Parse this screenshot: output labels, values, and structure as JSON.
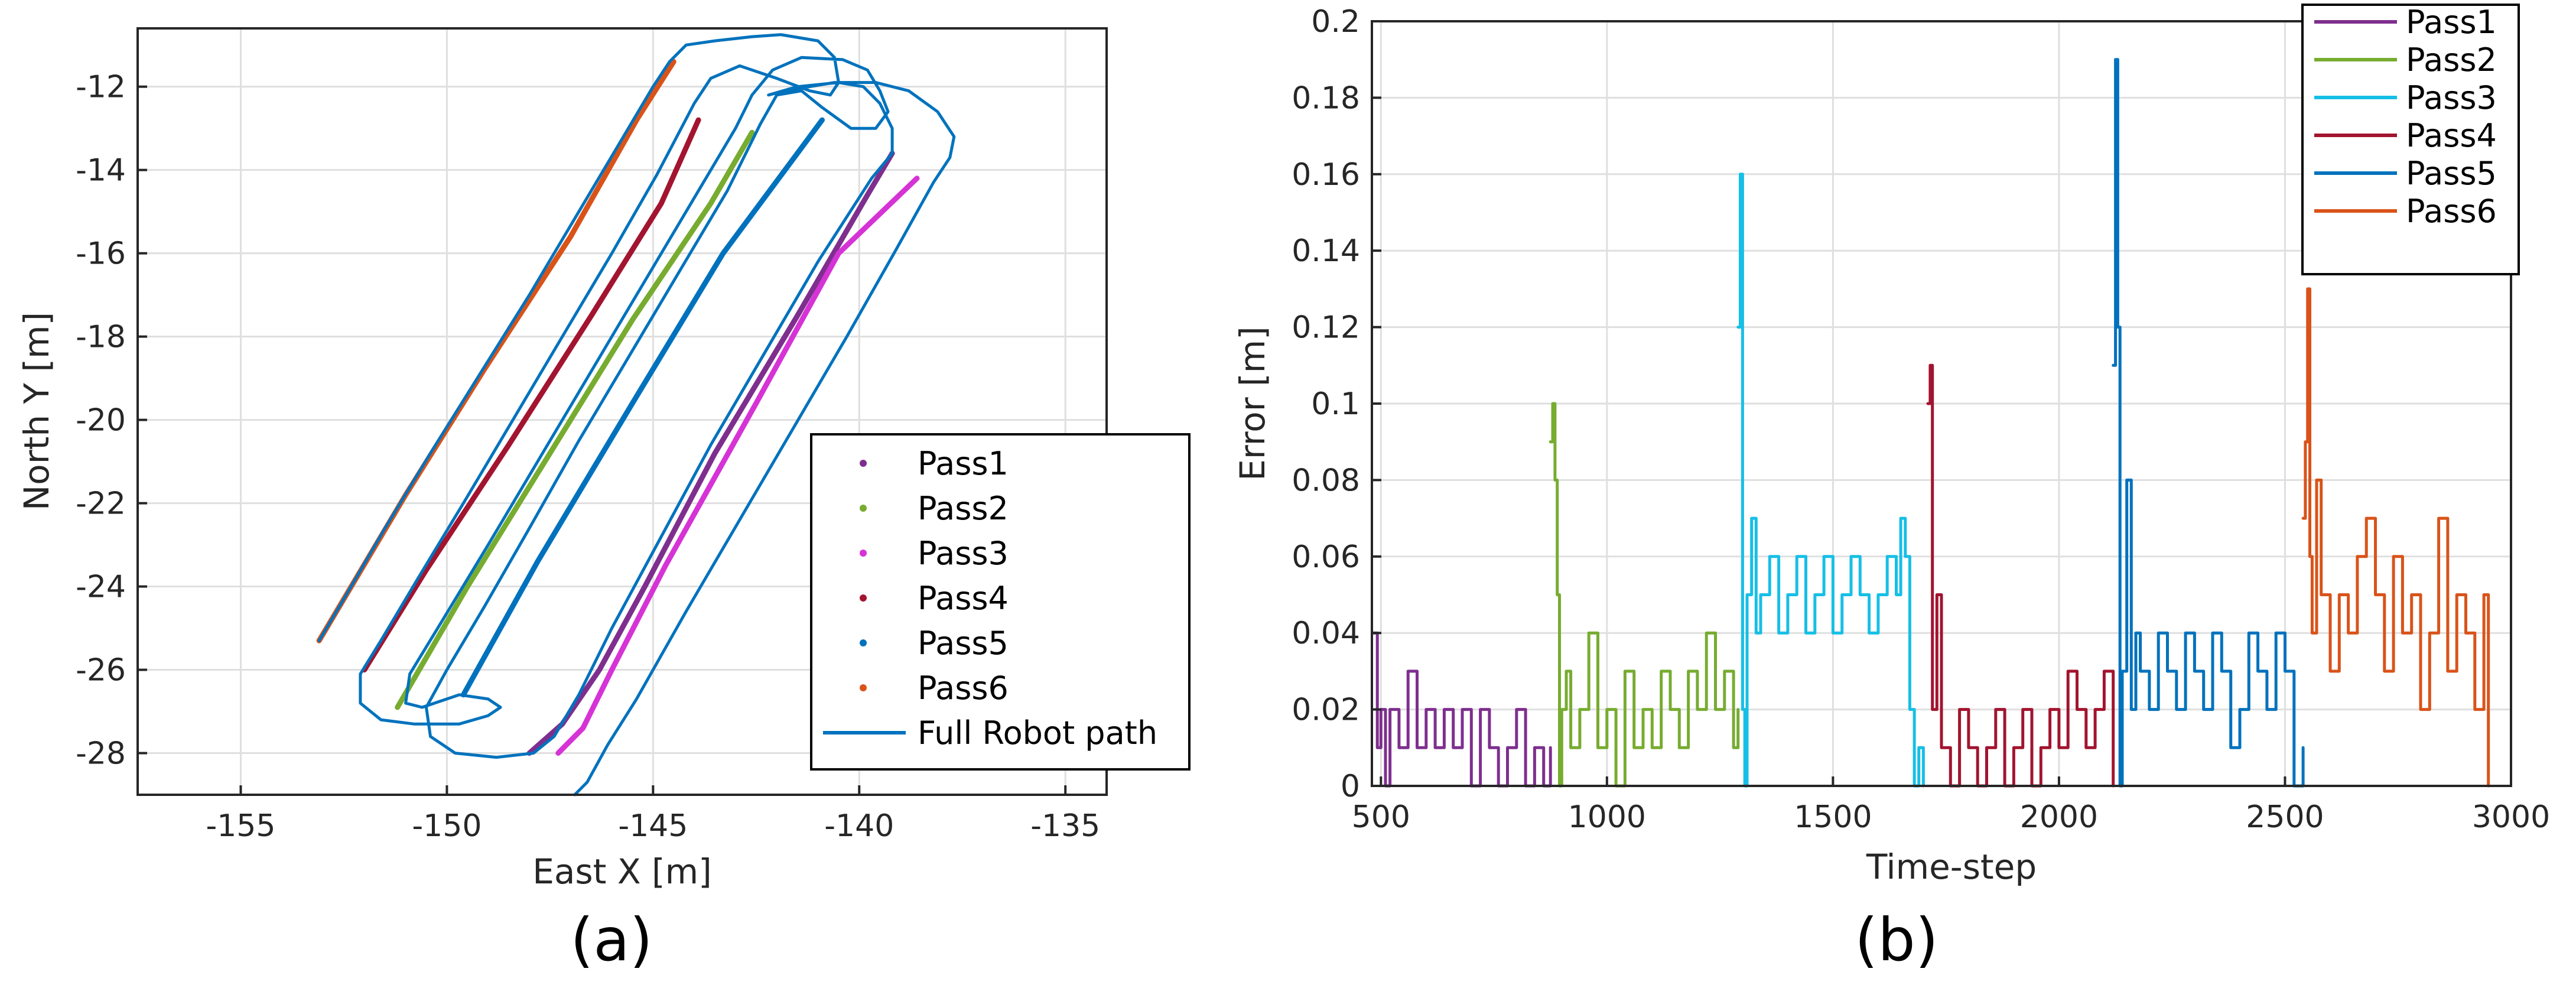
{
  "chart_data": [
    {
      "id": "a",
      "type": "line",
      "caption": "(a)",
      "xlabel": "East X [m]",
      "ylabel": "North Y [m]",
      "xlim": [
        -157.5,
        -134
      ],
      "ylim": [
        -29,
        -10.6
      ],
      "xticks": [
        -155,
        -150,
        -145,
        -140,
        -135
      ],
      "yticks": [
        -28,
        -26,
        -24,
        -22,
        -20,
        -18,
        -16,
        -14,
        -12
      ],
      "xtick_labels": [
        "-155",
        "-150",
        "-145",
        "-140",
        "-135"
      ],
      "ytick_labels": [
        "-28",
        "-26",
        "-24",
        "-22",
        "-20",
        "-18",
        "-16",
        "-14",
        "-12"
      ],
      "grid": true,
      "legend_position": "bottom-right",
      "series": [
        {
          "name": "Pass1",
          "color": "#7e2f8e",
          "marker": "dot",
          "points": [
            [
              -139.2,
              -13.6
            ],
            [
              -139.8,
              -14.6
            ],
            [
              -141.5,
              -17.5
            ],
            [
              -143.5,
              -20.8
            ],
            [
              -145.2,
              -24.0
            ],
            [
              -146.3,
              -26.0
            ],
            [
              -147.2,
              -27.3
            ],
            [
              -148.0,
              -28.0
            ]
          ]
        },
        {
          "name": "Pass2",
          "color": "#77ac30",
          "marker": "dot",
          "points": [
            [
              -151.2,
              -26.9
            ],
            [
              -149.5,
              -24.0
            ],
            [
              -147.5,
              -20.8
            ],
            [
              -145.5,
              -17.6
            ],
            [
              -143.6,
              -14.8
            ],
            [
              -142.6,
              -13.1
            ]
          ]
        },
        {
          "name": "Pass3",
          "color": "#d633d6",
          "marker": "dot",
          "points": [
            [
              -147.3,
              -28.0
            ],
            [
              -146.7,
              -27.4
            ],
            [
              -146.0,
              -26.0
            ],
            [
              -144.7,
              -23.5
            ],
            [
              -142.5,
              -19.6
            ],
            [
              -140.5,
              -16.0
            ],
            [
              -138.6,
              -14.2
            ]
          ]
        },
        {
          "name": "Pass4",
          "color": "#a2142f",
          "marker": "dot",
          "points": [
            [
              -152.0,
              -26.0
            ],
            [
              -150.5,
              -23.6
            ],
            [
              -148.5,
              -20.6
            ],
            [
              -146.5,
              -17.5
            ],
            [
              -144.8,
              -14.8
            ],
            [
              -143.9,
              -12.8
            ]
          ]
        },
        {
          "name": "Pass5",
          "color": "#0072bd",
          "marker": "dot",
          "points": [
            [
              -149.6,
              -26.6
            ],
            [
              -147.8,
              -23.4
            ],
            [
              -145.5,
              -19.6
            ],
            [
              -143.3,
              -16.0
            ],
            [
              -140.9,
              -12.8
            ]
          ]
        },
        {
          "name": "Pass6",
          "color": "#d95319",
          "marker": "dot",
          "points": [
            [
              -153.1,
              -25.3
            ],
            [
              -151.0,
              -21.8
            ],
            [
              -149.1,
              -18.8
            ],
            [
              -147.0,
              -15.6
            ],
            [
              -145.4,
              -12.8
            ],
            [
              -144.5,
              -11.4
            ]
          ]
        },
        {
          "name": "Full Robot path",
          "color": "#0072bd",
          "marker": "line",
          "points": [
            [
              -153.1,
              -25.3
            ],
            [
              -152.5,
              -24.3
            ],
            [
              -151.5,
              -22.6
            ],
            [
              -150.4,
              -20.8
            ],
            [
              -149.2,
              -18.9
            ],
            [
              -148.0,
              -17.0
            ],
            [
              -146.8,
              -15.0
            ],
            [
              -145.6,
              -13.0
            ],
            [
              -145.0,
              -12.0
            ],
            [
              -144.6,
              -11.4
            ],
            [
              -144.2,
              -11.0
            ],
            [
              -143.5,
              -10.9
            ],
            [
              -142.6,
              -10.8
            ],
            [
              -141.9,
              -10.75
            ],
            [
              -141.0,
              -10.9
            ],
            [
              -140.6,
              -11.3
            ],
            [
              -140.5,
              -11.9
            ],
            [
              -140.7,
              -12.2
            ],
            [
              -141.2,
              -12.1
            ],
            [
              -142.0,
              -11.8
            ],
            [
              -142.9,
              -11.5
            ],
            [
              -143.6,
              -11.8
            ],
            [
              -144.0,
              -12.4
            ],
            [
              -144.9,
              -14.1
            ],
            [
              -146.0,
              -16.0
            ],
            [
              -147.2,
              -18.0
            ],
            [
              -148.4,
              -20.0
            ],
            [
              -149.6,
              -22.0
            ],
            [
              -150.7,
              -23.8
            ],
            [
              -151.6,
              -25.3
            ],
            [
              -152.1,
              -26.1
            ],
            [
              -152.1,
              -26.8
            ],
            [
              -151.6,
              -27.2
            ],
            [
              -150.8,
              -27.3
            ],
            [
              -149.7,
              -27.3
            ],
            [
              -149.0,
              -27.1
            ],
            [
              -148.7,
              -26.9
            ],
            [
              -149.0,
              -26.7
            ],
            [
              -149.7,
              -26.6
            ],
            [
              -150.6,
              -26.9
            ],
            [
              -151.0,
              -26.8
            ],
            [
              -150.9,
              -26.1
            ],
            [
              -150.1,
              -24.8
            ],
            [
              -149.0,
              -23.0
            ],
            [
              -147.8,
              -21.0
            ],
            [
              -146.6,
              -19.0
            ],
            [
              -145.4,
              -17.0
            ],
            [
              -144.2,
              -15.0
            ],
            [
              -143.0,
              -13.0
            ],
            [
              -142.6,
              -12.2
            ],
            [
              -142.1,
              -11.6
            ],
            [
              -141.4,
              -11.3
            ],
            [
              -140.4,
              -11.35
            ],
            [
              -139.8,
              -11.6
            ],
            [
              -139.5,
              -12.1
            ],
            [
              -139.3,
              -12.6
            ],
            [
              -139.6,
              -13.0
            ],
            [
              -140.2,
              -13.0
            ],
            [
              -140.9,
              -12.5
            ],
            [
              -141.4,
              -12.1
            ],
            [
              -142.0,
              -12.2
            ],
            [
              -142.4,
              -12.9
            ],
            [
              -143.2,
              -14.5
            ],
            [
              -144.4,
              -16.5
            ],
            [
              -145.6,
              -18.5
            ],
            [
              -146.8,
              -20.5
            ],
            [
              -148.0,
              -22.6
            ],
            [
              -149.1,
              -24.5
            ],
            [
              -150.0,
              -26.0
            ],
            [
              -150.5,
              -26.9
            ],
            [
              -150.4,
              -27.6
            ],
            [
              -149.8,
              -28.0
            ],
            [
              -148.8,
              -28.1
            ],
            [
              -147.9,
              -28.0
            ],
            [
              -147.4,
              -27.6
            ],
            [
              -146.8,
              -26.6
            ],
            [
              -146.0,
              -25.0
            ],
            [
              -144.8,
              -22.8
            ],
            [
              -143.6,
              -20.6
            ],
            [
              -142.3,
              -18.4
            ],
            [
              -141.0,
              -16.2
            ],
            [
              -139.7,
              -14.2
            ],
            [
              -139.2,
              -13.6
            ],
            [
              -139.2,
              -13.0
            ],
            [
              -139.5,
              -12.4
            ],
            [
              -139.9,
              -12.0
            ],
            [
              -140.5,
              -11.9
            ],
            [
              -141.5,
              -12.0
            ],
            [
              -142.2,
              -12.2
            ],
            [
              -141.8,
              -12.1
            ],
            [
              -140.6,
              -11.9
            ],
            [
              -139.6,
              -11.9
            ],
            [
              -138.8,
              -12.1
            ],
            [
              -138.1,
              -12.6
            ],
            [
              -137.7,
              -13.2
            ],
            [
              -137.8,
              -13.7
            ],
            [
              -138.2,
              -14.3
            ],
            [
              -139.1,
              -15.9
            ],
            [
              -140.3,
              -18.0
            ],
            [
              -141.6,
              -20.2
            ],
            [
              -142.9,
              -22.4
            ],
            [
              -144.2,
              -24.6
            ],
            [
              -145.4,
              -26.7
            ],
            [
              -146.1,
              -27.8
            ],
            [
              -146.6,
              -28.7
            ],
            [
              -146.9,
              -29.0
            ]
          ]
        }
      ]
    },
    {
      "id": "b",
      "type": "line",
      "caption": "(b)",
      "xlabel": "Time-step",
      "ylabel": "Error [m]",
      "xlim": [
        480,
        3000
      ],
      "ylim": [
        0,
        0.2
      ],
      "xticks": [
        500,
        1000,
        1500,
        2000,
        2500,
        3000
      ],
      "yticks": [
        0,
        0.02,
        0.04,
        0.06,
        0.08,
        0.1,
        0.12,
        0.14,
        0.16,
        0.18,
        0.2
      ],
      "xtick_labels": [
        "500",
        "1000",
        "1500",
        "2000",
        "2500",
        "3000"
      ],
      "ytick_labels": [
        "0",
        "0.02",
        "0.04",
        "0.06",
        "0.08",
        "0.1",
        "0.12",
        "0.14",
        "0.16",
        "0.18",
        "0.2"
      ],
      "grid": true,
      "legend_position": "top-right",
      "series": [
        {
          "name": "Pass1",
          "color": "#7e2f8e",
          "x": [
            482,
            492,
            500,
            510,
            520,
            540,
            560,
            580,
            600,
            620,
            640,
            660,
            680,
            700,
            720,
            740,
            760,
            780,
            800,
            820,
            840,
            860,
            875
          ],
          "y": [
            0.04,
            0.01,
            0.02,
            0.0,
            0.02,
            0.01,
            0.03,
            0.01,
            0.02,
            0.01,
            0.02,
            0.01,
            0.02,
            0.0,
            0.02,
            0.01,
            0.0,
            0.01,
            0.02,
            0.0,
            0.01,
            0.0,
            0.01
          ]
        },
        {
          "name": "Pass2",
          "color": "#77ac30",
          "x": [
            875,
            880,
            885,
            890,
            895,
            900,
            910,
            920,
            940,
            960,
            980,
            1000,
            1020,
            1040,
            1060,
            1080,
            1100,
            1120,
            1140,
            1160,
            1180,
            1200,
            1220,
            1240,
            1260,
            1280,
            1290
          ],
          "y": [
            0.09,
            0.1,
            0.08,
            0.05,
            0.0,
            0.02,
            0.03,
            0.01,
            0.02,
            0.04,
            0.01,
            0.02,
            0.0,
            0.03,
            0.01,
            0.02,
            0.01,
            0.03,
            0.02,
            0.01,
            0.03,
            0.02,
            0.04,
            0.02,
            0.03,
            0.01,
            0.02
          ]
        },
        {
          "name": "Pass3",
          "color": "#16bfe6",
          "x": [
            1290,
            1295,
            1300,
            1305,
            1310,
            1320,
            1330,
            1340,
            1360,
            1380,
            1400,
            1420,
            1440,
            1460,
            1480,
            1500,
            1520,
            1540,
            1560,
            1580,
            1600,
            1620,
            1640,
            1650,
            1660,
            1670,
            1680,
            1690,
            1700
          ],
          "y": [
            0.12,
            0.16,
            0.02,
            0.0,
            0.05,
            0.07,
            0.04,
            0.05,
            0.06,
            0.04,
            0.05,
            0.06,
            0.04,
            0.05,
            0.06,
            0.04,
            0.05,
            0.06,
            0.05,
            0.04,
            0.05,
            0.06,
            0.05,
            0.07,
            0.06,
            0.02,
            0.0,
            0.01,
            0.0
          ]
        },
        {
          "name": "Pass4",
          "color": "#a2142f",
          "x": [
            1710,
            1715,
            1720,
            1730,
            1740,
            1760,
            1780,
            1800,
            1820,
            1840,
            1860,
            1880,
            1900,
            1920,
            1940,
            1960,
            1980,
            2000,
            2020,
            2040,
            2060,
            2080,
            2100,
            2120
          ],
          "y": [
            0.1,
            0.11,
            0.02,
            0.05,
            0.01,
            0.0,
            0.02,
            0.01,
            0.0,
            0.01,
            0.02,
            0.0,
            0.01,
            0.02,
            0.0,
            0.01,
            0.02,
            0.01,
            0.03,
            0.02,
            0.01,
            0.02,
            0.03,
            0.0
          ]
        },
        {
          "name": "Pass5",
          "color": "#0072bd",
          "x": [
            2120,
            2125,
            2130,
            2135,
            2140,
            2150,
            2160,
            2170,
            2180,
            2200,
            2220,
            2240,
            2260,
            2280,
            2300,
            2320,
            2340,
            2360,
            2380,
            2400,
            2420,
            2440,
            2460,
            2480,
            2500,
            2520,
            2540
          ],
          "y": [
            0.11,
            0.19,
            0.12,
            0.0,
            0.03,
            0.08,
            0.02,
            0.04,
            0.03,
            0.02,
            0.04,
            0.03,
            0.02,
            0.04,
            0.03,
            0.02,
            0.04,
            0.03,
            0.01,
            0.02,
            0.04,
            0.03,
            0.02,
            0.04,
            0.03,
            0.0,
            0.01
          ]
        },
        {
          "name": "Pass6",
          "color": "#d95319",
          "x": [
            2540,
            2545,
            2550,
            2555,
            2560,
            2570,
            2580,
            2600,
            2620,
            2640,
            2660,
            2680,
            2700,
            2720,
            2740,
            2760,
            2780,
            2800,
            2820,
            2840,
            2860,
            2880,
            2900,
            2920,
            2940,
            2950
          ],
          "y": [
            0.07,
            0.09,
            0.13,
            0.06,
            0.04,
            0.08,
            0.05,
            0.03,
            0.05,
            0.04,
            0.06,
            0.07,
            0.05,
            0.03,
            0.06,
            0.04,
            0.05,
            0.02,
            0.04,
            0.07,
            0.03,
            0.05,
            0.04,
            0.02,
            0.05,
            0.0
          ]
        }
      ]
    }
  ]
}
